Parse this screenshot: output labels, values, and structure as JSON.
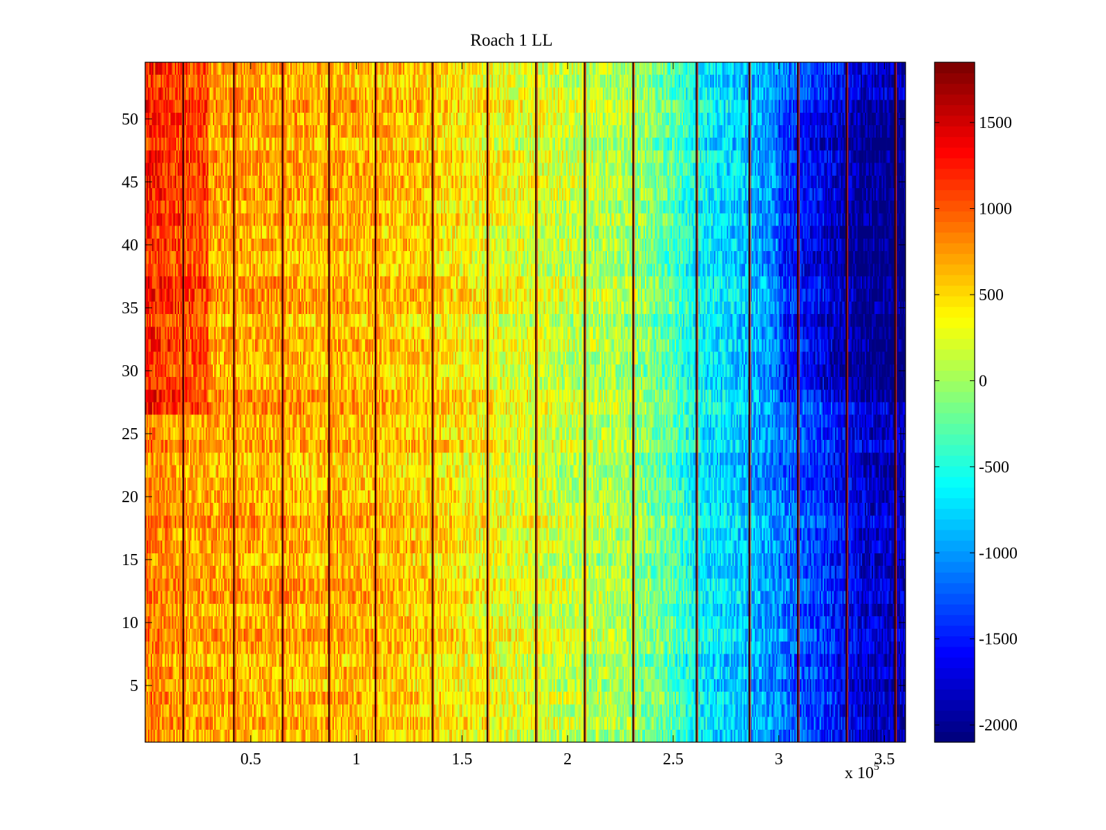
{
  "chart_data": {
    "type": "heatmap",
    "title": "Roach 1 LL",
    "xlabel": "",
    "ylabel": "",
    "x_multiplier_label": "x 10",
    "x_multiplier_exponent": "5",
    "xlim": [
      0,
      3.6
    ],
    "ylim": [
      0.5,
      54.5
    ],
    "x_ticks": [
      0.5,
      1,
      1.5,
      2,
      2.5,
      3,
      3.5
    ],
    "x_tick_labels": [
      "0.5",
      "1",
      "1.5",
      "2",
      "2.5",
      "3",
      "3.5"
    ],
    "y_ticks": [
      5,
      10,
      15,
      20,
      25,
      30,
      35,
      40,
      45,
      50
    ],
    "y_tick_labels": [
      "5",
      "10",
      "15",
      "20",
      "25",
      "30",
      "35",
      "40",
      "45",
      "50"
    ],
    "rows": 54,
    "colormap": "jet",
    "colorbar": {
      "range": [
        -2100,
        1850
      ],
      "ticks": [
        -2000,
        -1500,
        -1000,
        -500,
        0,
        500,
        1000,
        1500
      ],
      "tick_labels": [
        "-2000",
        "-1500",
        "-1000",
        "-500",
        "0",
        "500",
        "1000",
        "1500"
      ]
    },
    "column_trend": {
      "x": [
        0.0,
        0.2,
        0.5,
        0.8,
        1.0,
        1.3,
        1.6,
        1.9,
        2.1,
        2.3,
        2.5,
        2.6,
        2.8,
        3.0,
        3.2,
        3.4,
        3.6
      ],
      "value": [
        900,
        700,
        700,
        650,
        650,
        550,
        350,
        200,
        100,
        0,
        -300,
        -600,
        -800,
        -1100,
        -1400,
        -1750,
        -1900
      ]
    },
    "vertical_line_x": [
      0.18,
      0.42,
      0.65,
      0.87,
      1.09,
      1.36,
      1.62,
      1.85,
      2.08,
      2.31,
      2.61,
      2.86,
      3.09,
      3.32,
      3.55
    ]
  }
}
